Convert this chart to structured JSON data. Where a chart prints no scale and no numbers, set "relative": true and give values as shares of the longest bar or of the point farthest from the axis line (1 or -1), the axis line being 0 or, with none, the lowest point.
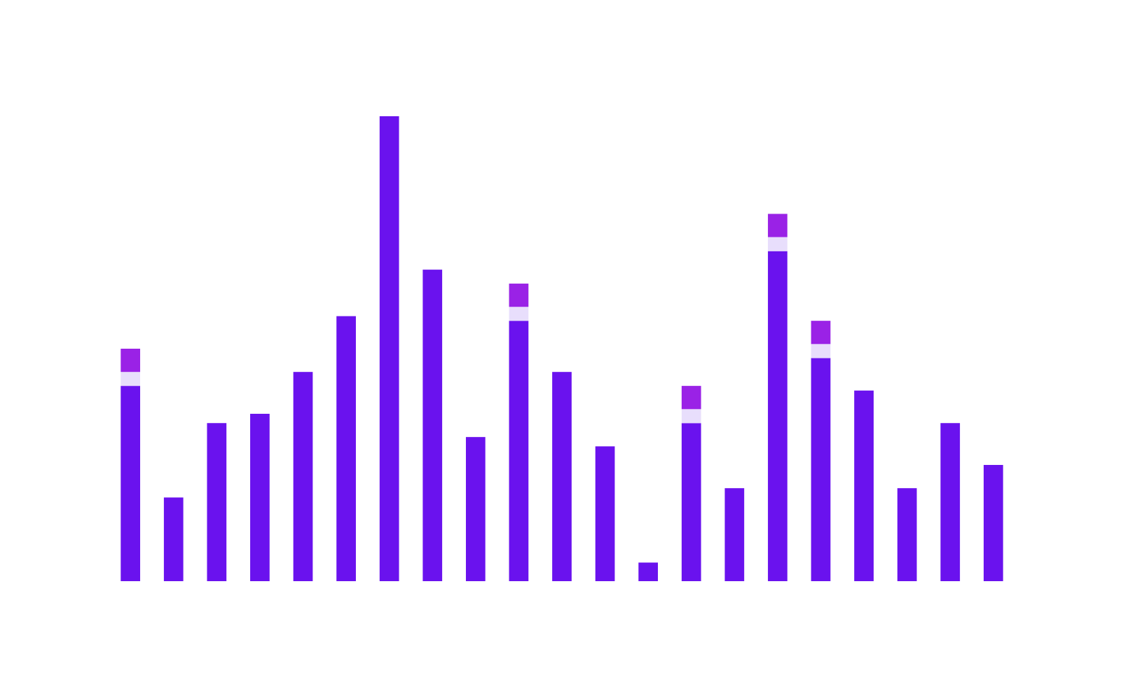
{
  "chart_data": {
    "type": "bar",
    "relative": true,
    "stacked": true,
    "categories": [
      null,
      null,
      null,
      null,
      null,
      null,
      null,
      null,
      null,
      null,
      null,
      null,
      null,
      null,
      null,
      null,
      null,
      null,
      null,
      null,
      null
    ],
    "series": [
      {
        "color": "#6a12ee",
        "values": [
          0.42,
          0.18,
          0.34,
          0.36,
          0.45,
          0.57,
          1,
          0.67,
          0.31,
          0.56,
          0.45,
          0.29,
          0.04,
          0.34,
          0.2,
          0.71,
          0.48,
          0.41,
          0.2,
          0.34,
          0.25
        ]
      },
      {
        "color": "#e8defc",
        "values": [
          0.03,
          0,
          0,
          0,
          0,
          0,
          0,
          0,
          0,
          0.03,
          0,
          0,
          0,
          0.03,
          0,
          0.03,
          0.03,
          0,
          0,
          0,
          0
        ]
      },
      {
        "color": "#9a22e6",
        "values": [
          0.05,
          0,
          0,
          0,
          0,
          0,
          0,
          0,
          0,
          0.05,
          0,
          0,
          0,
          0.05,
          0,
          0.05,
          0.05,
          0,
          0,
          0,
          0
        ]
      }
    ]
  }
}
